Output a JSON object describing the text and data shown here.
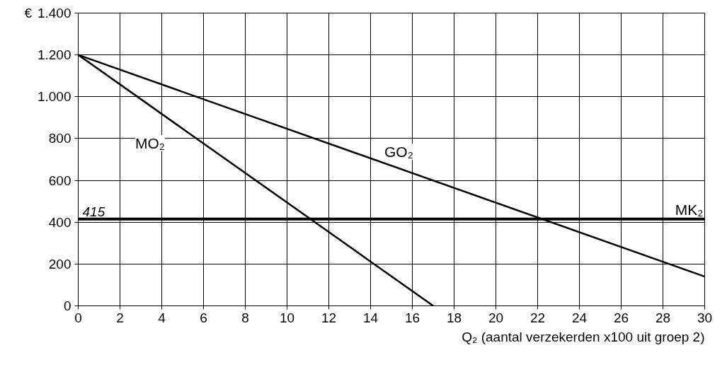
{
  "chart_data": {
    "type": "line",
    "xlabel": "Q₂ (aantal verzekerden x100 uit groep 2)",
    "ylabel": "€",
    "xlim": [
      0,
      30
    ],
    "xticks": [
      0,
      2,
      4,
      6,
      8,
      10,
      12,
      14,
      16,
      18,
      20,
      22,
      24,
      26,
      28,
      30
    ],
    "ylim": [
      0,
      1400
    ],
    "yticks": [
      {
        "value": 0,
        "label": "0"
      },
      {
        "value": 200,
        "label": "200"
      },
      {
        "value": 400,
        "label": "400"
      },
      {
        "value": 600,
        "label": "600"
      },
      {
        "value": 800,
        "label": "800"
      },
      {
        "value": 1000,
        "label": "1.000"
      },
      {
        "value": 1200,
        "label": "1.200"
      },
      {
        "value": 1400,
        "label": "1.400"
      }
    ],
    "grid": true,
    "series": [
      {
        "name": "MO₂",
        "color": "#000000",
        "x": [
          0,
          17
        ],
        "values": [
          1200,
          0
        ]
      },
      {
        "name": "GO₂",
        "color": "#000000",
        "x": [
          0,
          30
        ],
        "values": [
          1200,
          140
        ]
      }
    ],
    "ref_lines": [
      {
        "axis": "y",
        "value": 415,
        "label": "MK₂",
        "color": "#000000"
      }
    ],
    "annotations": [
      {
        "text": "415",
        "x": 0,
        "y": 415
      }
    ]
  }
}
